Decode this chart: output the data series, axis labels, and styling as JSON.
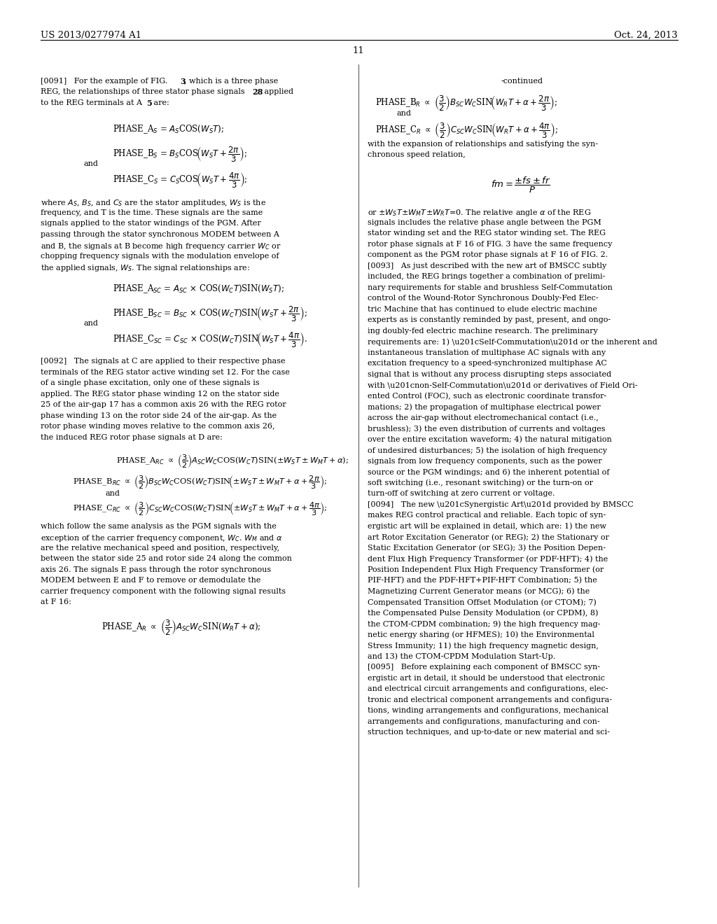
{
  "bg": "#ffffff",
  "header_left": "US 2013/0277974 A1",
  "header_right": "Oct. 24, 2013",
  "page_num": "11",
  "body_fs": 8.0,
  "form_fs": 8.5,
  "lm": 0.057,
  "rm": 0.487,
  "col2": 0.513,
  "col2r": 0.955
}
